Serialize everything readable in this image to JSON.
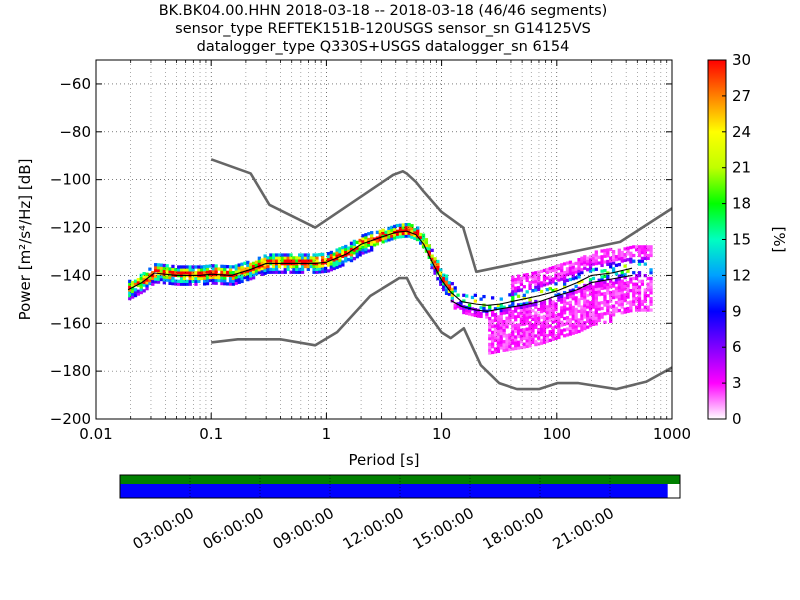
{
  "title_lines": [
    "BK.BK04.00.HHN   2018-03-18 -- 2018-03-18  (46/46 segments)",
    "sensor_type REFTEK151B-120USGS sensor_sn G14125VS",
    "datalogger_type Q330S+USGS datalogger_sn 6154"
  ],
  "chart_data": [
    {
      "type": "heatmap",
      "subtype": "probabilistic power spectral density",
      "xlabel": "Period [s]",
      "ylabel": "Power [m²/s⁴/Hz] [dB]",
      "xscale": "log",
      "xlim": [
        0.01,
        1000
      ],
      "ylim": [
        -200,
        -50
      ],
      "x_ticks": [
        0.01,
        0.1,
        1,
        10,
        100,
        1000
      ],
      "x_tick_labels": [
        "0.01",
        "0.1",
        "1",
        "10",
        "100",
        "1000"
      ],
      "y_ticks": [
        -200,
        -180,
        -160,
        -140,
        -120,
        -100,
        -80,
        -60
      ],
      "y_tick_labels": [
        "−200",
        "−180",
        "−160",
        "−140",
        "−120",
        "−100",
        "−80",
        "−60"
      ],
      "grid": "dotted",
      "colorbar": {
        "label": "[%]",
        "range": [
          0,
          30
        ],
        "ticks": [
          0,
          3,
          6,
          9,
          12,
          15,
          18,
          21,
          24,
          27,
          30
        ],
        "colors": [
          "#ffffff",
          "#ff00ff",
          "#8000ff",
          "#0000ff",
          "#00a0ff",
          "#00ffc0",
          "#00ff00",
          "#c0ff00",
          "#ffff00",
          "#ff8000",
          "#ff0000"
        ]
      },
      "noise_model_high": {
        "period": [
          0.1,
          0.22,
          0.32,
          0.8,
          3.8,
          4.6,
          5.0,
          6.0,
          7.0,
          10.0,
          15.4,
          20.0,
          354.8,
          1000
        ],
        "db": [
          -91.5,
          -97.4,
          -110.5,
          -120.0,
          -98.0,
          -96.5,
          -97.5,
          -101.0,
          -105.0,
          -113.5,
          -120.0,
          -138.5,
          -126.0,
          -112.0
        ]
      },
      "noise_model_low": {
        "period": [
          0.1,
          0.17,
          0.4,
          0.8,
          1.24,
          2.4,
          4.3,
          5.0,
          6.0,
          10.0,
          12.0,
          15.6,
          21.9,
          31.6,
          45.0,
          70.0,
          101.0,
          154.0,
          328.0,
          600.0,
          1000
        ],
        "db": [
          -168.0,
          -166.7,
          -166.7,
          -169.2,
          -163.7,
          -148.6,
          -141.1,
          -141.1,
          -149.0,
          -163.8,
          -166.2,
          -162.1,
          -177.5,
          -185.0,
          -187.5,
          -187.5,
          -185.0,
          -185.0,
          -187.5,
          -184.4,
          -178.5
        ]
      },
      "mean_curve": {
        "period": [
          0.019,
          0.025,
          0.032,
          0.05,
          0.08,
          0.1,
          0.15,
          0.22,
          0.3,
          0.5,
          0.8,
          1.0,
          1.5,
          2.0,
          3.0,
          4.0,
          5.0,
          6.0,
          7.0,
          8.0,
          10.0,
          12.0,
          15.0,
          20.0,
          25.0,
          32.0,
          50.0,
          70.0,
          100.0,
          150.0,
          200.0,
          300.0,
          450.0
        ],
        "db": [
          -146.0,
          -143.0,
          -139.0,
          -140.0,
          -140.0,
          -139.5,
          -140.0,
          -137.5,
          -135.0,
          -135.0,
          -135.0,
          -134.5,
          -131.0,
          -127.0,
          -124.0,
          -122.0,
          -121.5,
          -123.0,
          -127.0,
          -133.0,
          -142.0,
          -147.0,
          -151.0,
          -152.0,
          -152.5,
          -152.0,
          -150.0,
          -148.5,
          -146.5,
          -143.0,
          -140.0,
          -139.0,
          -137.0
        ]
      },
      "low_percentile_curve": {
        "period": [
          12.0,
          15.0,
          20.0,
          25.0,
          32.0,
          50.0,
          70.0,
          100.0,
          150.0,
          200.0,
          300.0,
          450.0
        ],
        "db": [
          -150.5,
          -153.0,
          -154.5,
          -155.0,
          -154.0,
          -152.5,
          -151.0,
          -148.5,
          -146.0,
          -143.0,
          -141.5,
          -140.0
        ]
      },
      "time_coverage": {
        "tick_labels": [
          "03:00:00",
          "06:00:00",
          "09:00:00",
          "12:00:00",
          "15:00:00",
          "18:00:00",
          "21:00:00"
        ],
        "data_fraction": 0.978,
        "colors": {
          "available": "#008000",
          "used": "#0000ff"
        }
      }
    }
  ]
}
